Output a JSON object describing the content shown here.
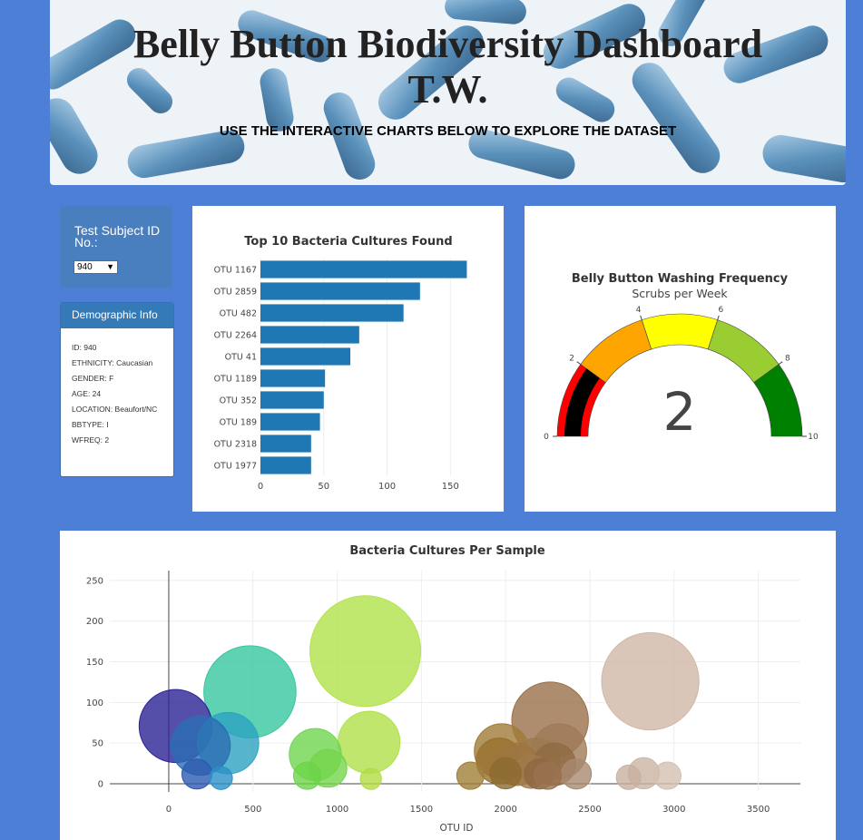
{
  "header": {
    "title_line1": "Belly Button Biodiversity Dashboard",
    "title_line2": "T.W.",
    "subtitle": "USE THE INTERACTIVE CHARTS BELOW TO EXPLORE THE DATASET"
  },
  "selector": {
    "label": "Test Subject ID No.:",
    "value": "940"
  },
  "demographics": {
    "title": "Demographic Info",
    "items": [
      "ID: 940",
      "ETHNICITY: Caucasian",
      "GENDER: F",
      "AGE: 24",
      "LOCATION: Beaufort/NC",
      "BBTYPE: I",
      "WFREQ: 2"
    ]
  },
  "chart_data": [
    {
      "type": "bar",
      "orientation": "horizontal",
      "title": "Top 10 Bacteria Cultures Found",
      "categories": [
        "OTU 1167",
        "OTU 2859",
        "OTU 482",
        "OTU 2264",
        "OTU 41",
        "OTU 1189",
        "OTU 352",
        "OTU 189",
        "OTU 2318",
        "OTU 1977"
      ],
      "values": [
        163,
        126,
        113,
        78,
        71,
        51,
        50,
        47,
        40,
        40
      ],
      "xticks": [
        0,
        50,
        100,
        150
      ],
      "xlim": [
        0,
        172
      ],
      "color": "#1f77b4",
      "grid": true
    },
    {
      "type": "gauge",
      "title": "Belly Button Washing Frequency",
      "subtitle": "Scrubs per Week",
      "value": 2,
      "range": [
        0,
        10
      ],
      "ticks": [
        0,
        2,
        4,
        6,
        8,
        10
      ],
      "steps": [
        {
          "range": [
            0,
            2
          ],
          "color": "#ff0000"
        },
        {
          "range": [
            2,
            4
          ],
          "color": "#ffa500"
        },
        {
          "range": [
            4,
            6
          ],
          "color": "#ffff00"
        },
        {
          "range": [
            6,
            8
          ],
          "color": "#9acd32"
        },
        {
          "range": [
            8,
            10
          ],
          "color": "#008000"
        }
      ],
      "bar_color": "#000000"
    },
    {
      "type": "scatter",
      "bubble": true,
      "title": "Bacteria Cultures Per Sample",
      "xlabel": "OTU ID",
      "ylabel": "",
      "xticks": [
        0,
        500,
        1000,
        1500,
        2000,
        2500,
        3000,
        3500
      ],
      "yticks": [
        0,
        50,
        100,
        150,
        200,
        250
      ],
      "xlim": [
        -350,
        3750
      ],
      "ylim": [
        -10,
        262
      ],
      "grid": true,
      "points": [
        {
          "x": 41,
          "y": 71,
          "color": "#2a2395"
        },
        {
          "x": 189,
          "y": 47,
          "color": "#2c6db3"
        },
        {
          "x": 352,
          "y": 50,
          "color": "#2ca3c1"
        },
        {
          "x": 482,
          "y": 113,
          "color": "#36c7a0"
        },
        {
          "x": 870,
          "y": 36,
          "color": "#6fd650"
        },
        {
          "x": 945,
          "y": 19,
          "color": "#74d44c"
        },
        {
          "x": 1167,
          "y": 163,
          "color": "#b2e24a"
        },
        {
          "x": 1189,
          "y": 51,
          "color": "#b0e04a"
        },
        {
          "x": 1977,
          "y": 40,
          "color": "#a07a38"
        },
        {
          "x": 1962,
          "y": 28,
          "color": "#97702f"
        },
        {
          "x": 2070,
          "y": 24,
          "color": "#9c7640"
        },
        {
          "x": 2184,
          "y": 28,
          "color": "#9c7a50"
        },
        {
          "x": 2264,
          "y": 78,
          "color": "#99704a"
        },
        {
          "x": 2318,
          "y": 40,
          "color": "#a07a58"
        },
        {
          "x": 2290,
          "y": 24,
          "color": "#8f6a44"
        },
        {
          "x": 2859,
          "y": 126,
          "color": "#cfb8a6"
        },
        {
          "x": 167,
          "y": 12,
          "color": "#2c5ab0"
        },
        {
          "x": 1791,
          "y": 10,
          "color": "#a07e38"
        },
        {
          "x": 2000,
          "y": 13,
          "color": "#8c6a30"
        },
        {
          "x": 2150,
          "y": 15,
          "color": "#a07a48"
        },
        {
          "x": 2200,
          "y": 12,
          "color": "#8c6844"
        },
        {
          "x": 2250,
          "y": 10,
          "color": "#9a7250"
        },
        {
          "x": 2420,
          "y": 12,
          "color": "#a88a70"
        },
        {
          "x": 2730,
          "y": 8,
          "color": "#c8b0a0"
        },
        {
          "x": 2820,
          "y": 13,
          "color": "#cbb4a4"
        },
        {
          "x": 2960,
          "y": 10,
          "color": "#d4c0b0"
        },
        {
          "x": 822,
          "y": 10,
          "color": "#6cd448"
        },
        {
          "x": 310,
          "y": 7,
          "color": "#2a90c8"
        },
        {
          "x": 1200,
          "y": 6,
          "color": "#b2dc44"
        }
      ]
    }
  ]
}
